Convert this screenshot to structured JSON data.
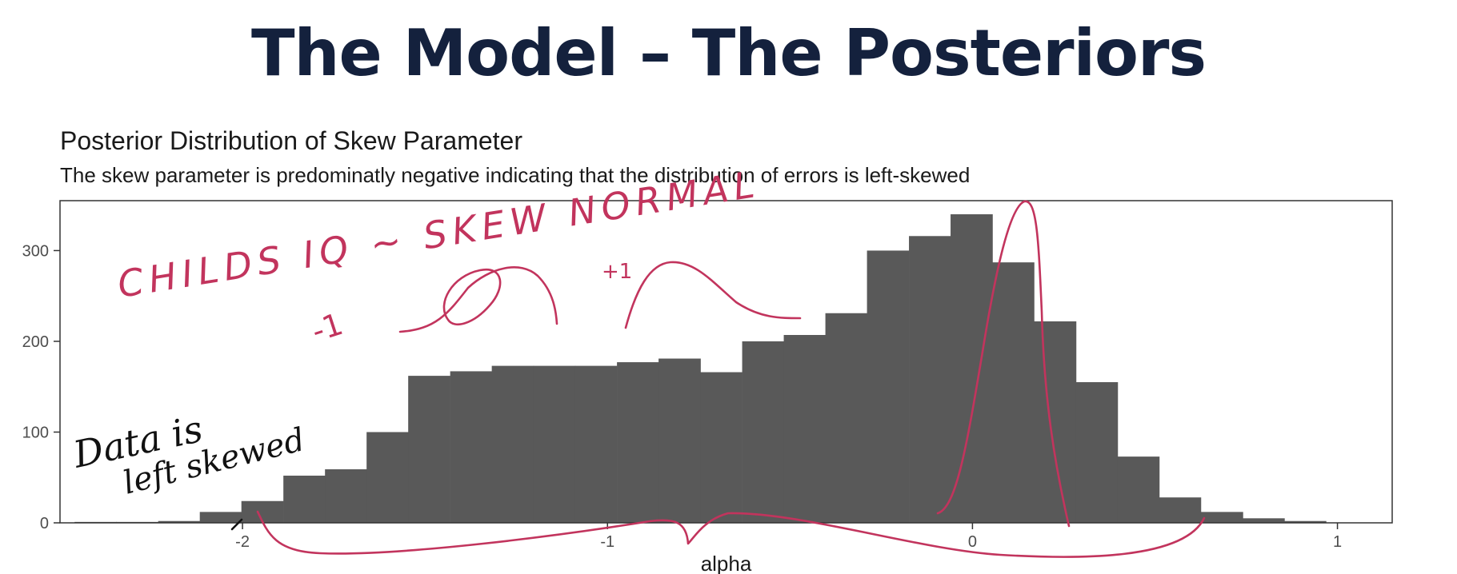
{
  "slide": {
    "title": "The Model – The Posteriors"
  },
  "chart_data": {
    "type": "bar",
    "title": "Posterior Distribution of Skew Parameter",
    "subtitle": "The skew parameter is predominatly negative indicating that the distribution of errors is left-skewed",
    "xlabel": "alpha",
    "ylabel": "",
    "xlim": [
      -2.5,
      1.15
    ],
    "ylim": [
      0,
      355
    ],
    "x_ticks": [
      -2,
      -1,
      0,
      1
    ],
    "x_tick_labels": [
      "-2",
      "-1",
      "0",
      "1"
    ],
    "y_ticks": [
      0,
      100,
      200,
      300
    ],
    "y_tick_labels": [
      "0",
      "100",
      "200",
      "300"
    ],
    "grid": false,
    "bin_width": 0.1143,
    "bins_left_edge": [
      -2.46,
      -2.346,
      -2.231,
      -2.117,
      -2.003,
      -1.888,
      -1.774,
      -1.66,
      -1.546,
      -1.431,
      -1.317,
      -1.203,
      -1.089,
      -0.974,
      -0.86,
      -0.746,
      -0.631,
      -0.517,
      -0.403,
      -0.289,
      -0.174,
      -0.06,
      0.054,
      0.169,
      0.283,
      0.397,
      0.511,
      0.626,
      0.74,
      0.854
    ],
    "values": [
      1,
      1,
      2,
      12,
      24,
      52,
      59,
      100,
      162,
      167,
      173,
      173,
      173,
      177,
      181,
      166,
      200,
      207,
      231,
      300,
      316,
      340,
      287,
      222,
      155,
      73,
      28,
      12,
      5,
      2
    ]
  },
  "annotations": {
    "handwriting_1": "CHILDS IQ ~ SKEW NORMAL",
    "handwriting_2": "-1",
    "handwriting_3": "+1",
    "handwriting_4": "Data is",
    "handwriting_5": "left skewed",
    "ink_color": "#c2345d",
    "ink_color_dark": "#111111"
  },
  "colors": {
    "title": "#14213d",
    "bar_fill": "#595959",
    "panel_border": "#333333"
  }
}
